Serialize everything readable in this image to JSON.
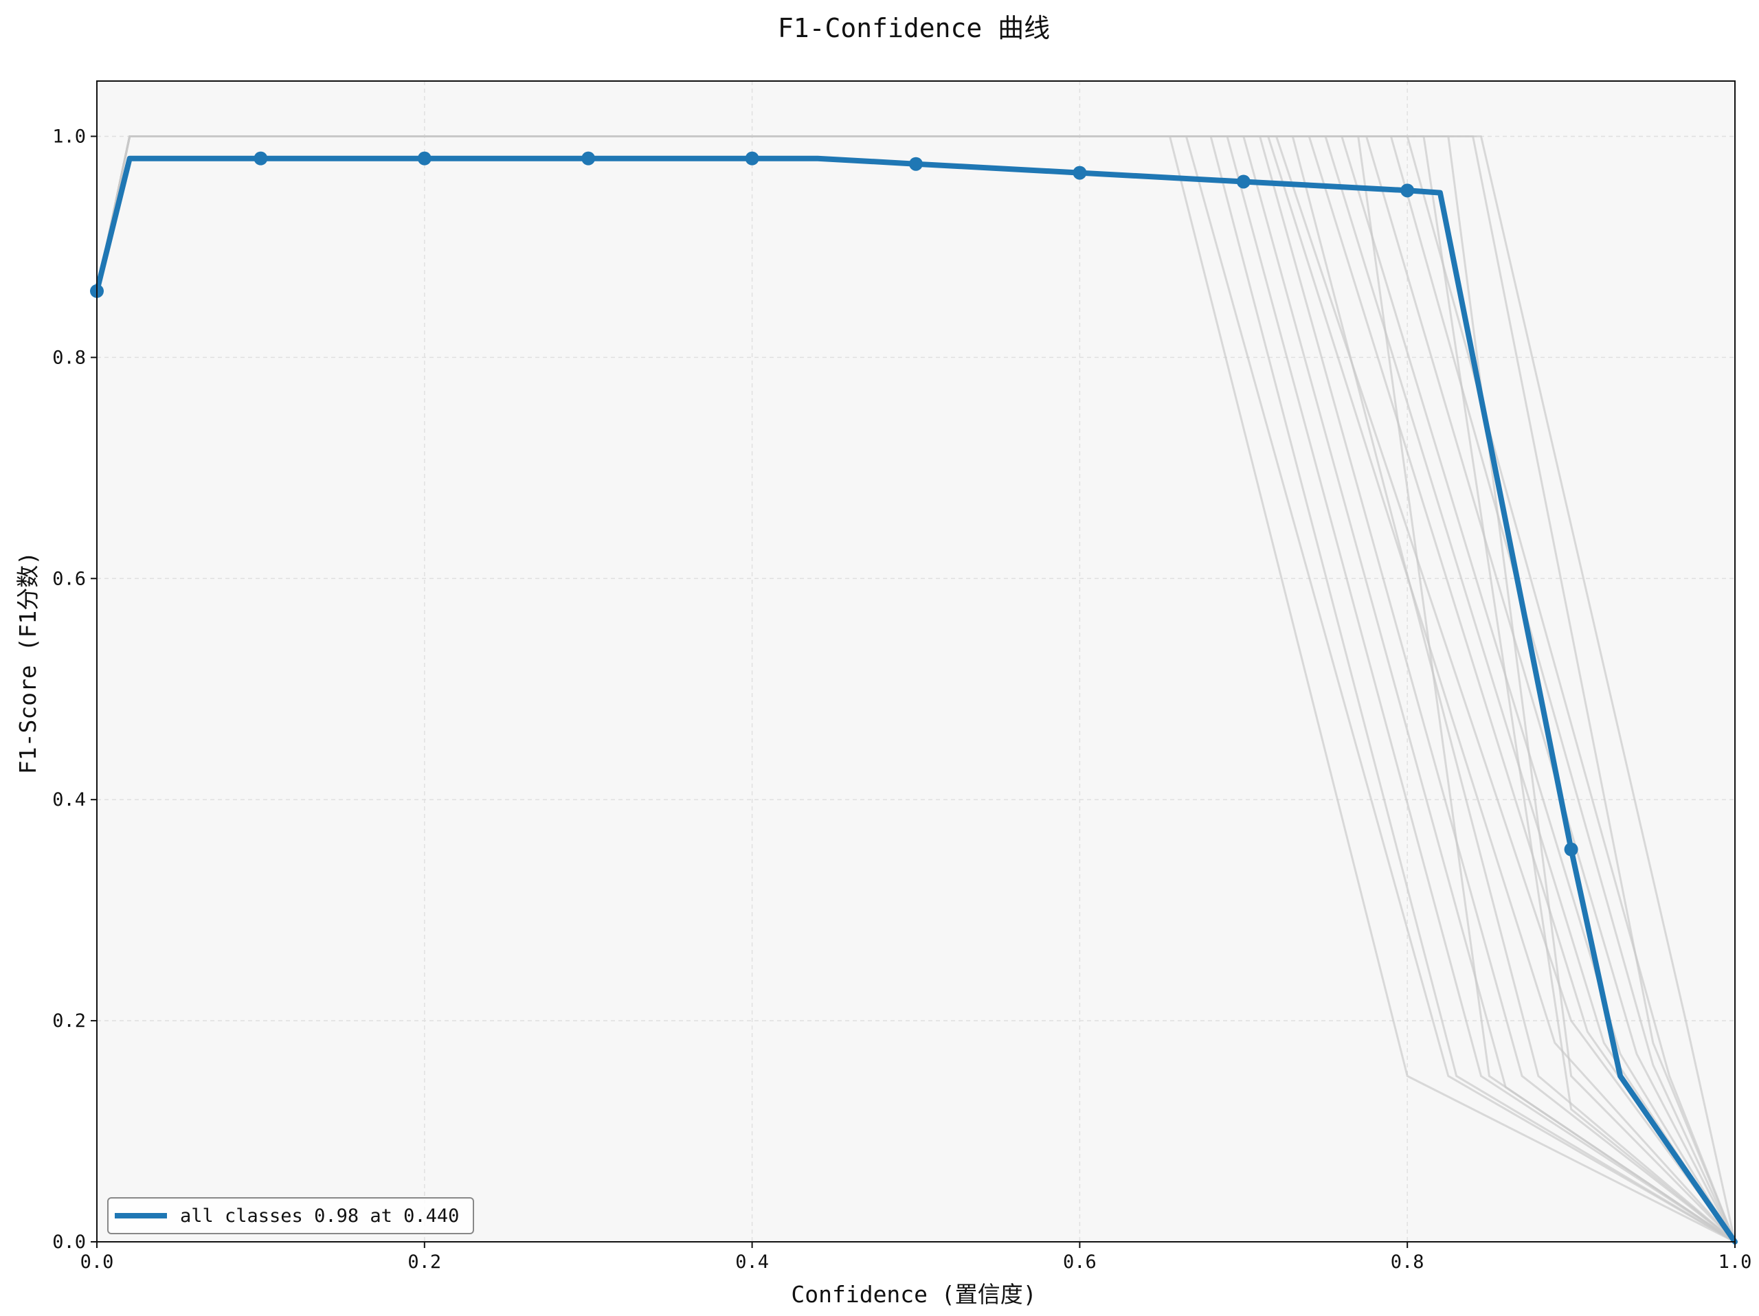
{
  "chart_data": {
    "type": "line",
    "title": "F1-Confidence 曲线",
    "xlabel": "Confidence (置信度)",
    "ylabel": "F1-Score (F1分数)",
    "xlim": [
      0,
      1
    ],
    "ylim": [
      0,
      1.05
    ],
    "x_ticks": [
      "0.0",
      "0.2",
      "0.4",
      "0.6",
      "0.8",
      "1.0"
    ],
    "y_ticks": [
      "0.0",
      "0.2",
      "0.4",
      "0.6",
      "0.8",
      "1.0"
    ],
    "grid": true,
    "legend": {
      "placement": "lower-left",
      "entries": [
        "all classes 0.98 at 0.440"
      ]
    },
    "colors": {
      "main_series": "#1f77b4",
      "class_series": "#c8c8c8",
      "plot_background": "#f7f7f7",
      "grid": "#e0e0e0"
    },
    "series": [
      {
        "name": "all classes 0.98 at 0.440",
        "style": "main",
        "x": [
          0.0,
          0.02,
          0.1,
          0.2,
          0.3,
          0.4,
          0.44,
          0.5,
          0.6,
          0.7,
          0.8,
          0.82,
          0.9,
          0.93,
          1.0
        ],
        "y": [
          0.86,
          0.98,
          0.98,
          0.98,
          0.98,
          0.98,
          0.98,
          0.975,
          0.967,
          0.959,
          0.951,
          0.949,
          0.355,
          0.15,
          0.0
        ],
        "markers_x": [
          0.0,
          0.1,
          0.2,
          0.3,
          0.4,
          0.5,
          0.6,
          0.7,
          0.8,
          0.9
        ],
        "markers_y": [
          0.86,
          0.98,
          0.98,
          0.98,
          0.98,
          0.975,
          0.967,
          0.959,
          0.951,
          0.355
        ]
      },
      {
        "style": "class",
        "x": [
          0.0,
          0.02,
          0.655,
          0.8,
          1.0
        ],
        "y": [
          0.86,
          1.0,
          1.0,
          0.15,
          0.0
        ]
      },
      {
        "style": "class",
        "x": [
          0.0,
          0.02,
          0.665,
          0.825,
          1.0
        ],
        "y": [
          0.86,
          1.0,
          1.0,
          0.15,
          0.0
        ]
      },
      {
        "style": "class",
        "x": [
          0.0,
          0.02,
          0.68,
          0.83,
          1.0
        ],
        "y": [
          0.86,
          1.0,
          1.0,
          0.15,
          0.0
        ]
      },
      {
        "style": "class",
        "x": [
          0.0,
          0.02,
          0.69,
          0.845,
          1.0
        ],
        "y": [
          0.86,
          1.0,
          1.0,
          0.15,
          0.0
        ]
      },
      {
        "style": "class",
        "x": [
          0.0,
          0.02,
          0.7,
          0.86,
          1.0
        ],
        "y": [
          0.86,
          1.0,
          1.0,
          0.14,
          0.0
        ]
      },
      {
        "style": "class",
        "x": [
          0.0,
          0.02,
          0.71,
          0.87,
          1.0
        ],
        "y": [
          0.86,
          1.0,
          1.0,
          0.15,
          0.0
        ]
      },
      {
        "style": "class",
        "x": [
          0.0,
          0.02,
          0.715,
          0.89,
          1.0
        ],
        "y": [
          0.86,
          1.0,
          1.0,
          0.18,
          0.0
        ]
      },
      {
        "style": "class",
        "x": [
          0.0,
          0.02,
          0.72,
          0.9,
          1.0
        ],
        "y": [
          0.86,
          1.0,
          1.0,
          0.2,
          0.0
        ]
      },
      {
        "style": "class",
        "x": [
          0.0,
          0.02,
          0.73,
          0.88,
          1.0
        ],
        "y": [
          0.86,
          1.0,
          1.0,
          0.15,
          0.0
        ]
      },
      {
        "style": "class",
        "x": [
          0.0,
          0.02,
          0.74,
          0.91,
          1.0
        ],
        "y": [
          0.86,
          1.0,
          1.0,
          0.19,
          0.0
        ]
      },
      {
        "style": "class",
        "x": [
          0.0,
          0.02,
          0.75,
          0.92,
          1.0
        ],
        "y": [
          0.86,
          1.0,
          1.0,
          0.18,
          0.0
        ]
      },
      {
        "style": "class",
        "x": [
          0.0,
          0.02,
          0.76,
          0.93,
          1.0
        ],
        "y": [
          0.86,
          1.0,
          1.0,
          0.17,
          0.0
        ]
      },
      {
        "style": "class",
        "x": [
          0.0,
          0.02,
          0.77,
          0.85,
          1.0
        ],
        "y": [
          0.86,
          1.0,
          1.0,
          0.15,
          0.0
        ]
      },
      {
        "style": "class",
        "x": [
          0.0,
          0.02,
          0.775,
          0.94,
          1.0
        ],
        "y": [
          0.86,
          1.0,
          1.0,
          0.17,
          0.0
        ]
      },
      {
        "style": "class",
        "x": [
          0.0,
          0.02,
          0.79,
          0.95,
          1.0
        ],
        "y": [
          0.86,
          1.0,
          1.0,
          0.16,
          0.0
        ]
      },
      {
        "style": "class",
        "x": [
          0.0,
          0.02,
          0.8,
          0.96,
          1.0
        ],
        "y": [
          0.86,
          1.0,
          1.0,
          0.15,
          0.0
        ]
      },
      {
        "style": "class",
        "x": [
          0.0,
          0.02,
          0.81,
          0.9,
          1.0
        ],
        "y": [
          0.86,
          1.0,
          1.0,
          0.12,
          0.0
        ]
      },
      {
        "style": "class",
        "x": [
          0.0,
          0.02,
          0.825,
          0.9,
          1.0
        ],
        "y": [
          0.86,
          1.0,
          1.0,
          0.15,
          0.0
        ]
      },
      {
        "style": "class",
        "x": [
          0.0,
          0.02,
          0.84,
          0.95,
          1.0
        ],
        "y": [
          0.86,
          1.0,
          1.0,
          0.18,
          0.0
        ]
      },
      {
        "style": "class",
        "x": [
          0.0,
          0.02,
          0.845,
          0.97,
          1.0
        ],
        "y": [
          0.86,
          1.0,
          1.0,
          0.2,
          0.0
        ]
      }
    ]
  }
}
